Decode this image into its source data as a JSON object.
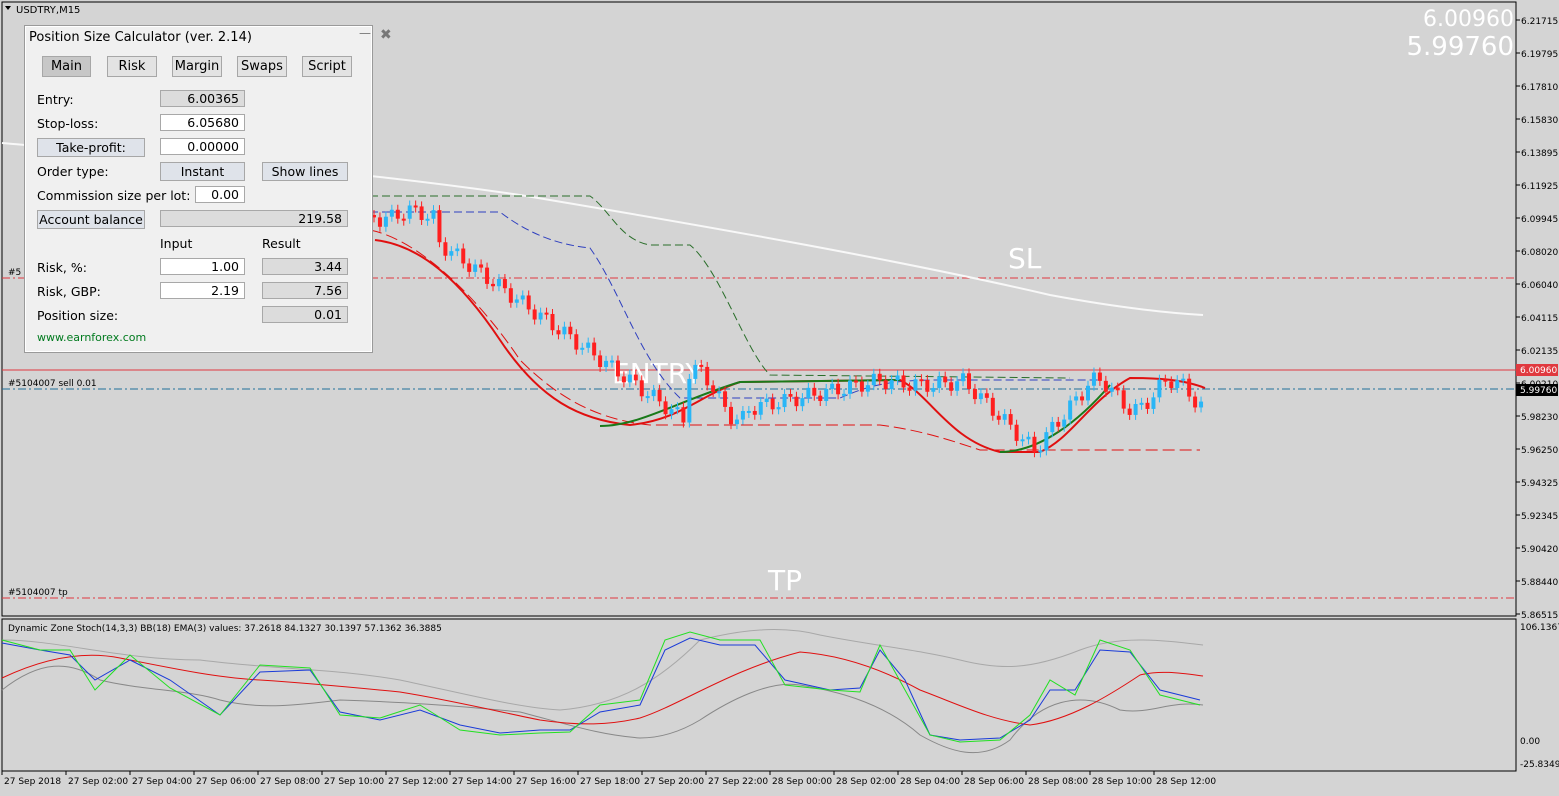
{
  "symbol_label": "USDTRY,M15",
  "top_right": {
    "ask": "6.00960",
    "bid": "5.99760"
  },
  "price_axis": {
    "labels": [
      "6.21715",
      "6.19795",
      "6.17810",
      "6.15830",
      "6.13895",
      "6.11925",
      "6.09945",
      "6.08020",
      "6.06040",
      "6.04115",
      "6.02135",
      "6.00210",
      "5.98230",
      "5.96250",
      "5.94325",
      "5.92345",
      "5.90420",
      "5.88440",
      "5.86515"
    ],
    "ask_tag": "6.00960",
    "bid_tag": "5.99760"
  },
  "chart_labels": {
    "sl": "SL",
    "entry": "ENTRY",
    "tp": "TP",
    "order_line": "#5104007 sell 0.01",
    "tp_line": "#5104007 tp",
    "sl_line": "#5"
  },
  "indicator": {
    "title": "Dynamic Zone Stoch(14,3,3) BB(18) EMA(3) values:  37.2618 84.1327 30.1397 57.1362 36.3885",
    "max_label": "106.1367",
    "zero_label": "0.00",
    "min_label": "-25.8349"
  },
  "time_axis": [
    "27 Sep 2018",
    "27 Sep 02:00",
    "27 Sep 04:00",
    "27 Sep 06:00",
    "27 Sep 08:00",
    "27 Sep 10:00",
    "27 Sep 12:00",
    "27 Sep 14:00",
    "27 Sep 16:00",
    "27 Sep 18:00",
    "27 Sep 20:00",
    "27 Sep 22:00",
    "28 Sep 00:00",
    "28 Sep 02:00",
    "28 Sep 04:00",
    "28 Sep 06:00",
    "28 Sep 08:00",
    "28 Sep 10:00",
    "28 Sep 12:00"
  ],
  "colors": {
    "bull": "#29b6f6",
    "bear": "#ff1f1f",
    "sl_line": "#e0393f",
    "ma_white": "#f8f8f8"
  },
  "panel": {
    "title": "Position Size Calculator (ver. 2.14)",
    "minimize": "—",
    "close": "✖",
    "tabs": [
      "Main",
      "Risk",
      "Margin",
      "Swaps",
      "Script"
    ],
    "entry_label": "Entry:",
    "entry_value": "6.00365",
    "stop_label": "Stop-loss:",
    "stop_value": "6.05680",
    "tp_button": "Take-profit:",
    "tp_value": "0.00000",
    "order_type_label": "Order type:",
    "order_type_button": "Instant",
    "show_lines_button": "Show lines",
    "commission_label": "Commission size per lot:",
    "commission_value": "0.00",
    "balance_button": "Account balance",
    "balance_value": "219.58",
    "input_header": "Input",
    "result_header": "Result",
    "risk_pct_label": "Risk, %:",
    "risk_pct_input": "1.00",
    "risk_pct_result": "3.44",
    "risk_gbp_label": "Risk, GBP:",
    "risk_gbp_input": "2.19",
    "risk_gbp_result": "7.56",
    "position_label": "Position size:",
    "position_result": "0.01",
    "link": "www.earnforex.com"
  }
}
